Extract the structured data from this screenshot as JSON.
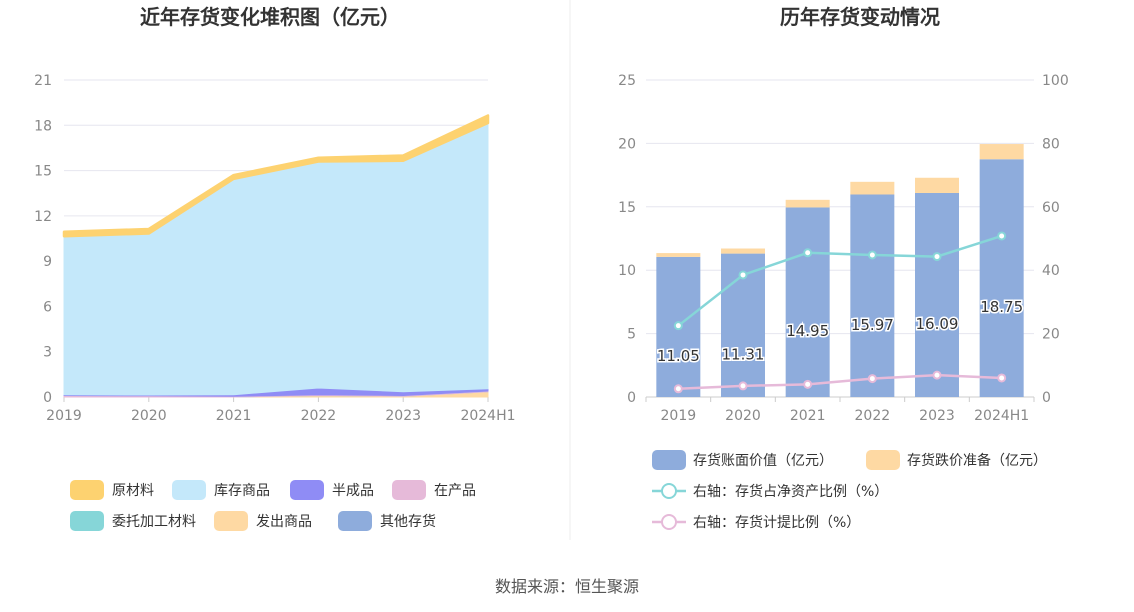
{
  "source_text": "数据来源：恒生聚源",
  "chart_data": [
    {
      "type": "area",
      "title": "近年存货变化堆积图（亿元）",
      "x": [
        "2019",
        "2020",
        "2021",
        "2022",
        "2023",
        "2024H1"
      ],
      "ylim": [
        0,
        21
      ],
      "yticks": [
        0,
        3,
        6,
        9,
        12,
        15,
        18,
        21
      ],
      "grid": true,
      "legend_position": "bottom",
      "series": [
        {
          "name": "原材料",
          "color": "#fdd270",
          "values": [
            0.3,
            0.3,
            0.25,
            0.25,
            0.35,
            0.5
          ]
        },
        {
          "name": "库存商品",
          "color": "#c4e8fa",
          "values": [
            10.5,
            10.7,
            14.3,
            15.0,
            15.3,
            17.6
          ]
        },
        {
          "name": "半成品",
          "color": "#8f8cf5",
          "values": [
            0.05,
            0.05,
            0.1,
            0.45,
            0.25,
            0.15
          ]
        },
        {
          "name": "在产品",
          "color": "#e6bad9",
          "values": [
            0.1,
            0.08,
            0.05,
            0.05,
            0.05,
            0.05
          ]
        },
        {
          "name": "委托加工材料",
          "color": "#86d6d8",
          "values": [
            0.0,
            0.0,
            0.0,
            0.0,
            0.0,
            0.0
          ]
        },
        {
          "name": "发出商品",
          "color": "#fed9a3",
          "values": [
            0.0,
            0.0,
            0.0,
            0.1,
            0.05,
            0.35
          ]
        },
        {
          "name": "其他存货",
          "color": "#8eacdc",
          "values": [
            0.0,
            0.0,
            0.0,
            0.0,
            0.0,
            0.0
          ]
        }
      ]
    },
    {
      "type": "bar",
      "title": "历年存货变动情况",
      "categories": [
        "2019",
        "2020",
        "2021",
        "2022",
        "2023",
        "2024H1"
      ],
      "ylim": [
        0,
        25
      ],
      "yticks": [
        0,
        5,
        10,
        15,
        20,
        25
      ],
      "y2lim": [
        0,
        100
      ],
      "y2ticks": [
        0,
        20,
        40,
        60,
        80,
        100
      ],
      "grid": true,
      "legend_position": "bottom",
      "series": [
        {
          "name": "存货账面价值（亿元）",
          "kind": "bar",
          "axis": "left",
          "color": "#8eacdc",
          "values": [
            11.05,
            11.31,
            14.95,
            15.97,
            16.09,
            18.75
          ],
          "labels": [
            "11.05",
            "11.31",
            "14.95",
            "15.97",
            "16.09",
            "18.75"
          ]
        },
        {
          "name": "存货跌价准备（亿元）",
          "kind": "bar",
          "axis": "left",
          "color": "#fed9a3",
          "values": [
            0.3,
            0.4,
            0.6,
            1.0,
            1.2,
            1.2
          ]
        },
        {
          "name": "右轴：存货占净资产比例（%）",
          "kind": "line",
          "axis": "right",
          "color": "#86d6d8",
          "values": [
            22.5,
            38.5,
            45.5,
            44.8,
            44.3,
            50.8
          ]
        },
        {
          "name": "右轴：存货计提比例（%）",
          "kind": "line",
          "axis": "right",
          "color": "#e6bad9",
          "values": [
            2.6,
            3.5,
            4.0,
            5.8,
            6.9,
            6.0
          ]
        }
      ]
    }
  ]
}
